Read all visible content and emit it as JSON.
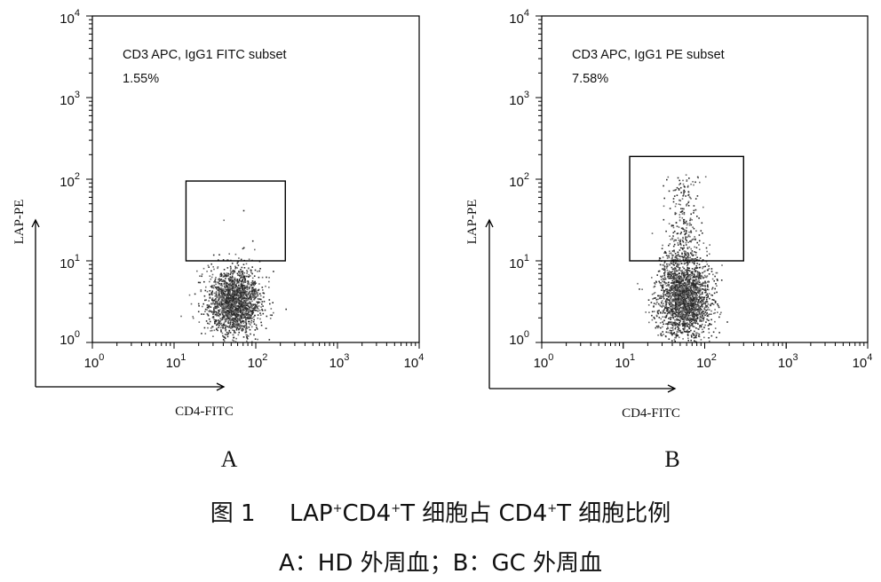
{
  "chart_data": [
    {
      "panel": "A",
      "type": "scatter",
      "title": "CD3 APC, IgG1 FITC subset",
      "gate_percent": "1.55%",
      "xlabel": "CD4-FITC",
      "ylabel": "LAP-PE",
      "x_scale": "log",
      "y_scale": "log",
      "xlim": [
        1,
        10000
      ],
      "ylim": [
        1,
        10000
      ],
      "xticks": [
        1,
        10,
        100,
        1000,
        10000
      ],
      "yticks": [
        1,
        10,
        100,
        1000,
        10000
      ],
      "gate": {
        "x": [
          14,
          230
        ],
        "y": [
          10,
          95
        ]
      },
      "population": {
        "center_x": 55,
        "center_y": 3.2,
        "spread_x_decades": 0.16,
        "spread_y_decades": 0.2,
        "count": 1900
      },
      "sparse_points": [
        {
          "x": 70,
          "y": 42
        },
        {
          "x": 40,
          "y": 32
        },
        {
          "x": 95,
          "y": 14
        },
        {
          "x": 30,
          "y": 12
        }
      ]
    },
    {
      "panel": "B",
      "type": "scatter",
      "title": "CD3 APC, IgG1 PE subset",
      "gate_percent": "7.58%",
      "xlabel": "CD4-FITC",
      "ylabel": "LAP-PE",
      "x_scale": "log",
      "y_scale": "log",
      "xlim": [
        1,
        10000
      ],
      "ylim": [
        1,
        10000
      ],
      "xticks": [
        1,
        10,
        100,
        1000,
        10000
      ],
      "yticks": [
        1,
        10,
        100,
        1000,
        10000
      ],
      "gate": {
        "x": [
          12,
          300
        ],
        "y": [
          10,
          190
        ]
      },
      "population": {
        "center_x": 55,
        "center_y": 3.5,
        "spread_x_decades": 0.16,
        "spread_y_decades": 0.24,
        "count": 2100
      },
      "tail": {
        "center_x": 55,
        "count": 300,
        "y_range": [
          10,
          110
        ]
      },
      "sparse_points": [
        {
          "x": 58,
          "y": 115
        },
        {
          "x": 70,
          "y": 95
        },
        {
          "x": 45,
          "y": 80
        }
      ]
    }
  ],
  "figure": {
    "panel_letters": [
      "A",
      "B"
    ],
    "caption_prefix": "图 1",
    "caption_parts": [
      "LAP",
      "+",
      "CD4",
      "+",
      "T 细胞占 CD4",
      "+",
      "T 细胞比例"
    ],
    "subcaption": "A：HD 外周血；B：GC 外周血"
  },
  "colors": {
    "dots": "#2a2a2a",
    "dots_light": "#6a6a6a",
    "frame": "#000000"
  }
}
